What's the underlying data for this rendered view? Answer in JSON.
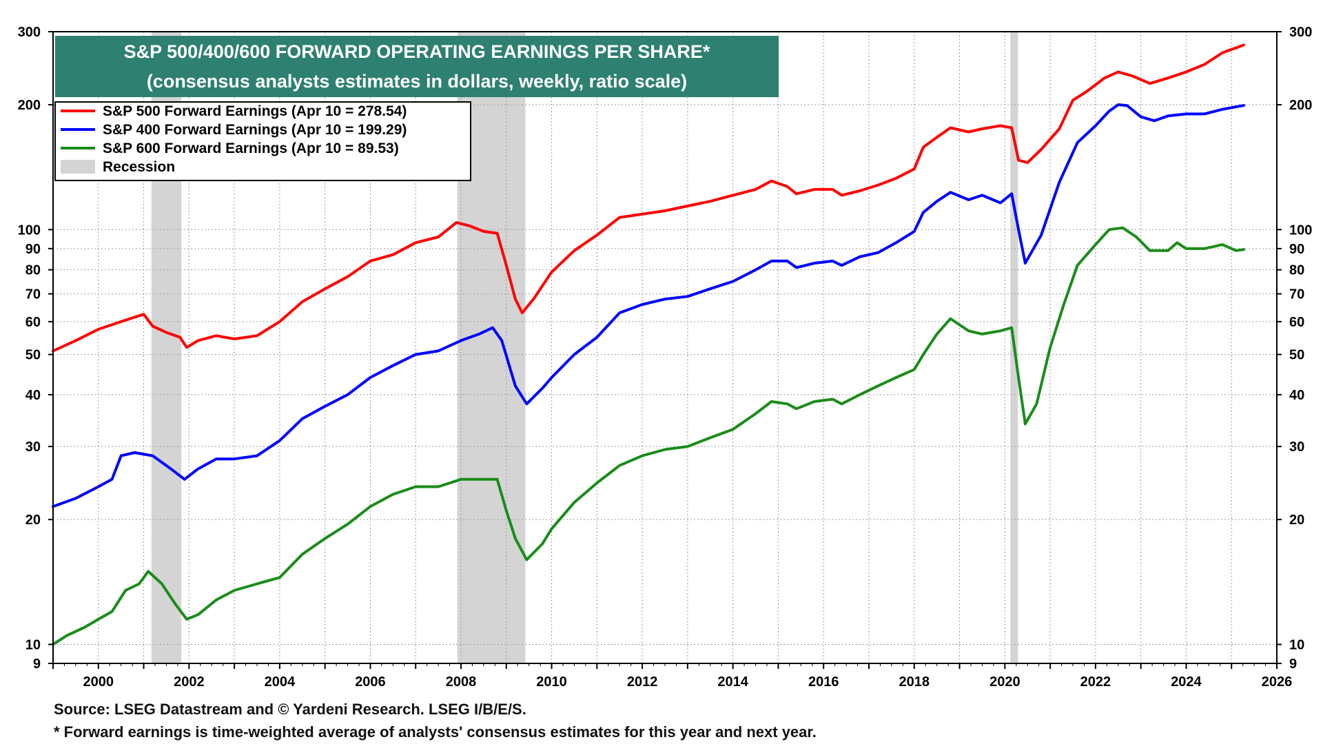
{
  "chart_data": {
    "type": "line",
    "title": "S&P 500/400/600 FORWARD OPERATING EARNINGS PER SHARE*",
    "subtitle": "(consensus analysts estimates in dollars, weekly, ratio scale)",
    "title_box_color": "#2e8070",
    "y_scale": "log",
    "ylim": [
      9,
      300
    ],
    "xlim": [
      1999.0,
      2026.0
    ],
    "x_tick_labels": [
      "2000",
      "2002",
      "2004",
      "2006",
      "2008",
      "2010",
      "2012",
      "2014",
      "2016",
      "2018",
      "2020",
      "2022",
      "2024",
      "2026"
    ],
    "y_tick_labels": [
      {
        "v": 9,
        "label": "9"
      },
      {
        "v": 10,
        "label": "10"
      },
      {
        "v": 20,
        "label": "20"
      },
      {
        "v": 30,
        "label": "30"
      },
      {
        "v": 40,
        "label": "40"
      },
      {
        "v": 50,
        "label": "50"
      },
      {
        "v": 60,
        "label": "60"
      },
      {
        "v": 70,
        "label": "70"
      },
      {
        "v": 80,
        "label": "80"
      },
      {
        "v": 90,
        "label": "90"
      },
      {
        "v": 100,
        "label": "100"
      },
      {
        "v": 200,
        "label": "200"
      },
      {
        "v": 300,
        "label": "300"
      }
    ],
    "grid": true,
    "legend_position": "top-left",
    "recession_label": "Recession",
    "recession_color": "#d4d4d4",
    "recessions": [
      [
        2001.17,
        2001.83
      ],
      [
        2007.92,
        2009.42
      ],
      [
        2020.12,
        2020.29
      ]
    ],
    "series": [
      {
        "name": "S&P 500 Forward Earnings (Apr 10 = 278.54)",
        "color": "#ff0000",
        "points": [
          [
            1999.0,
            51
          ],
          [
            1999.5,
            54
          ],
          [
            2000.0,
            57.5
          ],
          [
            2000.5,
            60
          ],
          [
            2001.0,
            62.5
          ],
          [
            2001.2,
            58.5
          ],
          [
            2001.5,
            56.5
          ],
          [
            2001.8,
            55
          ],
          [
            2001.95,
            52
          ],
          [
            2002.2,
            54
          ],
          [
            2002.6,
            55.5
          ],
          [
            2003.0,
            54.5
          ],
          [
            2003.5,
            55.5
          ],
          [
            2004.0,
            60
          ],
          [
            2004.5,
            67
          ],
          [
            2005.0,
            72
          ],
          [
            2005.5,
            77
          ],
          [
            2006.0,
            84
          ],
          [
            2006.5,
            87
          ],
          [
            2007.0,
            93
          ],
          [
            2007.5,
            96
          ],
          [
            2007.9,
            104
          ],
          [
            2008.2,
            102
          ],
          [
            2008.5,
            99
          ],
          [
            2008.8,
            98
          ],
          [
            2009.0,
            82
          ],
          [
            2009.2,
            68
          ],
          [
            2009.35,
            63
          ],
          [
            2009.6,
            68
          ],
          [
            2010.0,
            79
          ],
          [
            2010.5,
            89
          ],
          [
            2011.0,
            97
          ],
          [
            2011.5,
            107
          ],
          [
            2012.0,
            109
          ],
          [
            2012.5,
            111
          ],
          [
            2013.0,
            114
          ],
          [
            2013.5,
            117
          ],
          [
            2014.0,
            121
          ],
          [
            2014.5,
            125
          ],
          [
            2014.85,
            131
          ],
          [
            2015.2,
            127
          ],
          [
            2015.4,
            122
          ],
          [
            2015.8,
            125
          ],
          [
            2016.2,
            125
          ],
          [
            2016.4,
            121
          ],
          [
            2016.8,
            124
          ],
          [
            2017.2,
            128
          ],
          [
            2017.6,
            133
          ],
          [
            2018.0,
            140
          ],
          [
            2018.2,
            158
          ],
          [
            2018.5,
            167
          ],
          [
            2018.8,
            176
          ],
          [
            2019.2,
            172
          ],
          [
            2019.5,
            175
          ],
          [
            2019.9,
            178
          ],
          [
            2020.15,
            176
          ],
          [
            2020.3,
            147
          ],
          [
            2020.5,
            145
          ],
          [
            2020.8,
            156
          ],
          [
            2021.2,
            175
          ],
          [
            2021.5,
            205
          ],
          [
            2021.8,
            215
          ],
          [
            2022.2,
            232
          ],
          [
            2022.5,
            240
          ],
          [
            2022.8,
            235
          ],
          [
            2023.2,
            225
          ],
          [
            2023.6,
            232
          ],
          [
            2024.0,
            240
          ],
          [
            2024.4,
            250
          ],
          [
            2024.8,
            267
          ],
          [
            2025.27,
            278.54
          ]
        ]
      },
      {
        "name": "S&P 400 Forward Earnings (Apr 10 = 199.29)",
        "color": "#0000ff",
        "points": [
          [
            1999.0,
            21.5
          ],
          [
            1999.5,
            22.5
          ],
          [
            2000.0,
            24
          ],
          [
            2000.3,
            25
          ],
          [
            2000.5,
            28.5
          ],
          [
            2000.8,
            29
          ],
          [
            2001.2,
            28.5
          ],
          [
            2001.6,
            26.5
          ],
          [
            2001.9,
            25
          ],
          [
            2002.2,
            26.5
          ],
          [
            2002.6,
            28
          ],
          [
            2003.0,
            28
          ],
          [
            2003.5,
            28.5
          ],
          [
            2004.0,
            31
          ],
          [
            2004.5,
            35
          ],
          [
            2005.0,
            37.5
          ],
          [
            2005.5,
            40
          ],
          [
            2006.0,
            44
          ],
          [
            2006.5,
            47
          ],
          [
            2007.0,
            50
          ],
          [
            2007.5,
            51
          ],
          [
            2008.0,
            54
          ],
          [
            2008.4,
            56
          ],
          [
            2008.7,
            58
          ],
          [
            2008.9,
            54
          ],
          [
            2009.2,
            42
          ],
          [
            2009.45,
            38
          ],
          [
            2009.8,
            41.5
          ],
          [
            2010.0,
            44
          ],
          [
            2010.5,
            50
          ],
          [
            2011.0,
            55
          ],
          [
            2011.5,
            63
          ],
          [
            2012.0,
            66
          ],
          [
            2012.5,
            68
          ],
          [
            2013.0,
            69
          ],
          [
            2013.5,
            72
          ],
          [
            2014.0,
            75
          ],
          [
            2014.5,
            80
          ],
          [
            2014.85,
            84
          ],
          [
            2015.2,
            84
          ],
          [
            2015.4,
            81
          ],
          [
            2015.8,
            83
          ],
          [
            2016.2,
            84
          ],
          [
            2016.4,
            82
          ],
          [
            2016.8,
            86
          ],
          [
            2017.2,
            88
          ],
          [
            2017.6,
            93
          ],
          [
            2018.0,
            99
          ],
          [
            2018.2,
            110
          ],
          [
            2018.5,
            117
          ],
          [
            2018.8,
            123
          ],
          [
            2019.2,
            118
          ],
          [
            2019.5,
            121
          ],
          [
            2019.9,
            116
          ],
          [
            2020.15,
            122
          ],
          [
            2020.3,
            100
          ],
          [
            2020.45,
            83
          ],
          [
            2020.8,
            97
          ],
          [
            2021.2,
            130
          ],
          [
            2021.6,
            162
          ],
          [
            2022.0,
            178
          ],
          [
            2022.3,
            193
          ],
          [
            2022.5,
            200
          ],
          [
            2022.7,
            199
          ],
          [
            2023.0,
            187
          ],
          [
            2023.3,
            183
          ],
          [
            2023.6,
            188
          ],
          [
            2024.0,
            190
          ],
          [
            2024.4,
            190
          ],
          [
            2024.8,
            195
          ],
          [
            2025.27,
            199.29
          ]
        ]
      },
      {
        "name": "S&P 600 Forward Earnings (Apr 10 = 89.53)",
        "color": "#1a8c1a",
        "points": [
          [
            1999.0,
            10
          ],
          [
            1999.3,
            10.5
          ],
          [
            1999.7,
            11
          ],
          [
            2000.0,
            11.5
          ],
          [
            2000.3,
            12
          ],
          [
            2000.6,
            13.5
          ],
          [
            2000.9,
            14
          ],
          [
            2001.1,
            15
          ],
          [
            2001.4,
            14
          ],
          [
            2001.7,
            12.5
          ],
          [
            2001.95,
            11.5
          ],
          [
            2002.2,
            11.8
          ],
          [
            2002.6,
            12.8
          ],
          [
            2003.0,
            13.5
          ],
          [
            2003.5,
            14
          ],
          [
            2004.0,
            14.5
          ],
          [
            2004.5,
            16.5
          ],
          [
            2005.0,
            18
          ],
          [
            2005.5,
            19.5
          ],
          [
            2006.0,
            21.5
          ],
          [
            2006.5,
            23
          ],
          [
            2007.0,
            24
          ],
          [
            2007.5,
            24
          ],
          [
            2008.0,
            25
          ],
          [
            2008.5,
            25
          ],
          [
            2008.8,
            25
          ],
          [
            2009.0,
            21
          ],
          [
            2009.2,
            18
          ],
          [
            2009.45,
            16
          ],
          [
            2009.8,
            17.5
          ],
          [
            2010.0,
            19
          ],
          [
            2010.5,
            22
          ],
          [
            2011.0,
            24.5
          ],
          [
            2011.5,
            27
          ],
          [
            2012.0,
            28.5
          ],
          [
            2012.5,
            29.5
          ],
          [
            2013.0,
            30
          ],
          [
            2013.5,
            31.5
          ],
          [
            2014.0,
            33
          ],
          [
            2014.5,
            36
          ],
          [
            2014.85,
            38.5
          ],
          [
            2015.2,
            38
          ],
          [
            2015.4,
            37
          ],
          [
            2015.8,
            38.5
          ],
          [
            2016.2,
            39
          ],
          [
            2016.4,
            38
          ],
          [
            2016.8,
            40
          ],
          [
            2017.2,
            42
          ],
          [
            2017.6,
            44
          ],
          [
            2018.0,
            46
          ],
          [
            2018.2,
            50
          ],
          [
            2018.5,
            56
          ],
          [
            2018.8,
            61
          ],
          [
            2019.2,
            57
          ],
          [
            2019.5,
            56
          ],
          [
            2019.9,
            57
          ],
          [
            2020.15,
            58
          ],
          [
            2020.3,
            44
          ],
          [
            2020.45,
            34
          ],
          [
            2020.7,
            38
          ],
          [
            2021.0,
            52
          ],
          [
            2021.3,
            66
          ],
          [
            2021.6,
            82
          ],
          [
            2022.0,
            92
          ],
          [
            2022.3,
            100
          ],
          [
            2022.6,
            101
          ],
          [
            2022.9,
            96
          ],
          [
            2023.2,
            89
          ],
          [
            2023.6,
            89
          ],
          [
            2023.8,
            93
          ],
          [
            2024.0,
            90
          ],
          [
            2024.4,
            90
          ],
          [
            2024.8,
            92
          ],
          [
            2025.1,
            89
          ],
          [
            2025.27,
            89.53
          ]
        ]
      }
    ]
  },
  "footer": {
    "source": "Source: LSEG Datastream and © Yardeni Research. LSEG I/B/E/S.",
    "note": "* Forward earnings is time-weighted average of analysts' consensus estimates for this year and next year."
  }
}
